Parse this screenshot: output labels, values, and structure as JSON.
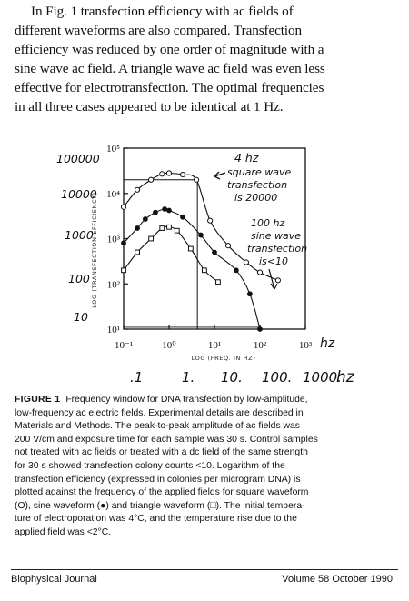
{
  "paragraph": {
    "lines": [
      "In Fig. 1 transfection efficiency with ac fields of",
      "different waveforms are also compared. Transfection",
      "efficiency was reduced by one order of magnitude with a",
      "sine wave ac field. A triangle wave ac field was even less",
      "effective for electrotransfection. The optimal frequencies",
      "in all three cases appeared to be identical at 1 Hz."
    ]
  },
  "figure": {
    "y_axis_label": "LOG (TRANSFECTION EFFICIENCY)",
    "x_axis_label": "LOG (FREQ. IN HZ)",
    "y_tick_labels": [
      "10⁵",
      "10⁴",
      "10³",
      "10²",
      "10¹"
    ],
    "x_tick_labels": [
      "10⁻¹",
      "10⁰",
      "10¹",
      "10²",
      "10³"
    ],
    "handwritten_y_labels": [
      "100000",
      "10000",
      "1000",
      "100",
      "10"
    ],
    "handwritten_x_labels": [
      ".1",
      "1.",
      "10.",
      "100.",
      "1000."
    ],
    "handwritten_x_unit": "hz",
    "handwritten_hz_top": "hz",
    "annotation_square": [
      "4 hz",
      "square wave",
      "transfection",
      "is 20000"
    ],
    "annotation_sine": [
      "100 hz",
      "sine wave",
      "transfection",
      "is<10"
    ]
  },
  "chart_data": {
    "type": "scatter",
    "x_scale": "log",
    "y_scale": "log",
    "xlim": [
      0.1,
      1000
    ],
    "ylim": [
      10,
      100000
    ],
    "xlabel": "LOG (FREQ. IN HZ)",
    "ylabel": "LOG (TRANSFECTION EFFICIENCY)",
    "series": [
      {
        "name": "square waveform (○)",
        "marker": "open-circle",
        "x": [
          0.1,
          0.2,
          0.4,
          0.7,
          1.0,
          2.0,
          4.0,
          8.0,
          20,
          50,
          100,
          250
        ],
        "y": [
          5000,
          12000,
          20000,
          27000,
          28000,
          26000,
          20000,
          2500,
          700,
          300,
          180,
          120
        ]
      },
      {
        "name": "sine waveform (●)",
        "marker": "filled-circle",
        "x": [
          0.1,
          0.2,
          0.3,
          0.5,
          0.8,
          1.0,
          2.0,
          5.0,
          10,
          30,
          60,
          100
        ],
        "y": [
          800,
          1700,
          2700,
          3800,
          4500,
          4200,
          3000,
          1200,
          500,
          200,
          60,
          10
        ]
      },
      {
        "name": "triangle waveform (□)",
        "marker": "open-square",
        "x": [
          0.1,
          0.2,
          0.4,
          0.7,
          1.0,
          1.5,
          3.0,
          6.0,
          12
        ],
        "y": [
          200,
          500,
          1000,
          1700,
          1800,
          1500,
          600,
          200,
          110
        ]
      }
    ]
  },
  "caption": {
    "label": "FIGURE 1",
    "lines": [
      "Frequency window for DNA transfection by low-amplitude,",
      "low-frequency ac electric fields. Experimental details are described in",
      "Materials and Methods. The peak-to-peak amplitude of ac fields was",
      "200 V/cm and exposure time for each sample was 30 s. Control samples",
      "not treated with ac fields or treated with a dc field of the same strength",
      "for 30 s showed transfection colony counts <10. Logarithm of the",
      "transfection efficiency (expressed in colonies per microgram DNA) is",
      "plotted against the frequency of the applied fields for square waveform",
      "(O), sine waveform (●) and triangle waveform (□). The initial tempera-",
      "ture of electroporation was 4°C, and the temperature rise due to the",
      "applied field was <2°C."
    ]
  },
  "footer": {
    "journal": "Biophysical Journal",
    "volume": "Volume 58   October 1990"
  }
}
